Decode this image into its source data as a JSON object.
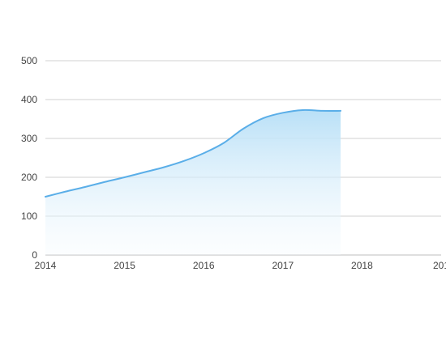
{
  "chart_data": {
    "type": "area",
    "x": [
      2014,
      2014.25,
      2014.5,
      2014.75,
      2015,
      2015.25,
      2015.5,
      2015.75,
      2016,
      2016.25,
      2016.5,
      2016.75,
      2017,
      2017.25,
      2017.5,
      2017.73
    ],
    "series": [
      {
        "values": [
          150,
          163,
          175,
          188,
          200,
          213,
          226,
          242,
          262,
          288,
          325,
          352,
          366,
          373,
          371,
          371
        ]
      }
    ],
    "xlim": [
      2014,
      2019
    ],
    "ylim": [
      0,
      500
    ],
    "x_ticks": [
      "2014",
      "2015",
      "2016",
      "2017",
      "2018",
      "201"
    ],
    "y_ticks": [
      "0",
      "100",
      "200",
      "300",
      "400",
      "500"
    ],
    "grid": true,
    "colors": {
      "line": "#5aaee8",
      "fill_top": "#b9e0f7",
      "fill_bottom": "#f4fafe",
      "grid": "#d2d2d2",
      "text": "#444444"
    }
  }
}
